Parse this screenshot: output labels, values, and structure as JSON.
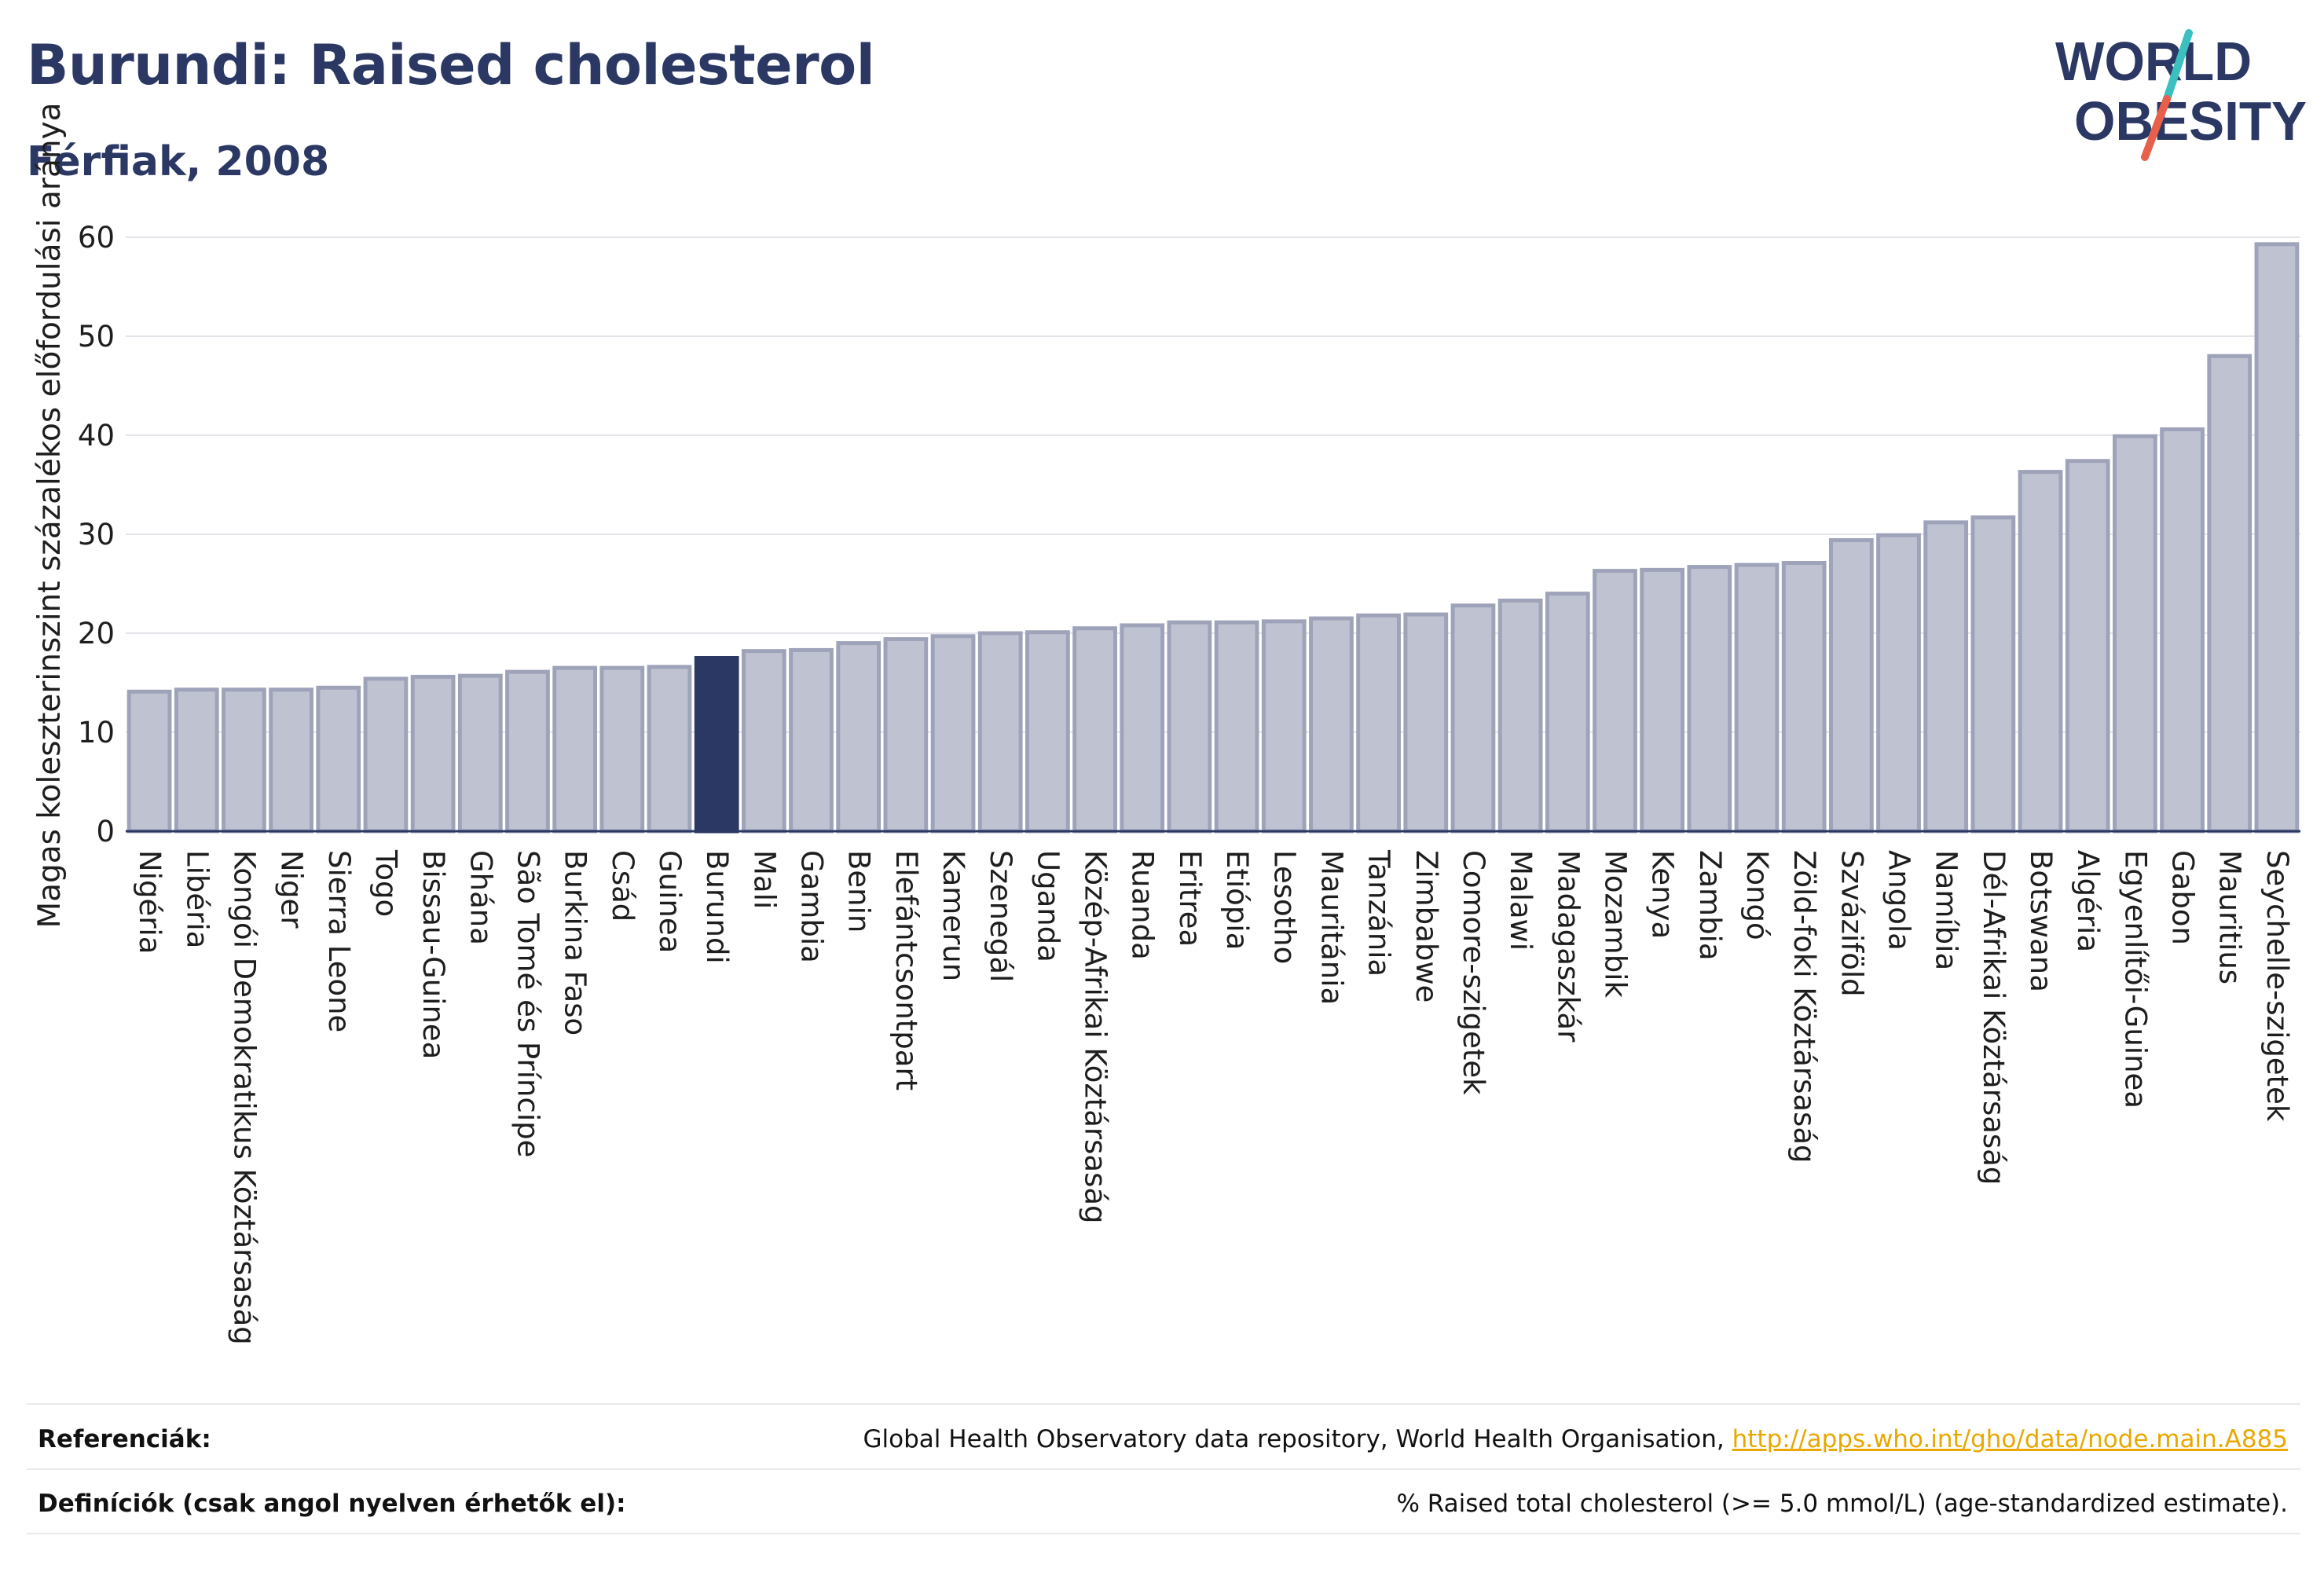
{
  "header": {
    "title": "Burundi: Raised cholesterol",
    "subtitle": "Férfiak, 2008"
  },
  "logo": {
    "line1": "WORLD",
    "line2": "OBESITY",
    "colors": {
      "text": "#2c3864",
      "slash_teal": "#3bbfbf",
      "slash_red": "#e8604c"
    }
  },
  "chart_data": {
    "type": "bar",
    "title": "",
    "xlabel": "",
    "ylabel": "Magas koleszterinszint százalékos előfordulási aránya",
    "ylim": [
      0,
      60
    ],
    "yticks": [
      0,
      10,
      20,
      30,
      40,
      50,
      60
    ],
    "grid": true,
    "highlight": "Burundi",
    "colors": {
      "bar": "#bfc3d1",
      "bar_edge": "#9ea3ba",
      "highlight": "#2c3864",
      "grid": "#e4e4ea",
      "axis": "#2c3864"
    },
    "categories": [
      "Nigéria",
      "Libéria",
      "Kongói Demokratikus Köztársaság",
      "Niger",
      "Sierra Leone",
      "Togo",
      "Bissau-Guinea",
      "Ghána",
      "São Tomé és Príncipe",
      "Burkina Faso",
      "Csád",
      "Guinea",
      "Burundi",
      "Mali",
      "Gambia",
      "Benin",
      "Elefántcsontpart",
      "Kamerun",
      "Szenegál",
      "Uganda",
      "Közép-Afrikai Köztársaság",
      "Ruanda",
      "Eritrea",
      "Etiópia",
      "Lesotho",
      "Mauritánia",
      "Tanzánia",
      "Zimbabwe",
      "Comore-szigetek",
      "Malawi",
      "Madagaszkár",
      "Mozambik",
      "Kenya",
      "Zambia",
      "Kongó",
      "Zöld-foki Köztársaság",
      "Szváziföld",
      "Angola",
      "Namíbia",
      "Dél-Afrikai Köztársaság",
      "Botswana",
      "Algéria",
      "Egyenlítői-Guinea",
      "Gabon",
      "Mauritius",
      "Seychelle-szigetek"
    ],
    "values": [
      14.1,
      14.3,
      14.3,
      14.3,
      14.5,
      15.4,
      15.6,
      15.7,
      16.1,
      16.5,
      16.5,
      16.6,
      17.5,
      18.2,
      18.3,
      19.0,
      19.4,
      19.7,
      20.0,
      20.1,
      20.5,
      20.8,
      21.1,
      21.1,
      21.2,
      21.5,
      21.8,
      21.9,
      22.8,
      23.3,
      24.0,
      26.3,
      26.4,
      26.7,
      26.9,
      27.1,
      29.4,
      29.9,
      31.2,
      31.7,
      36.3,
      37.4,
      39.9,
      40.6,
      48.0,
      59.3
    ]
  },
  "footer": {
    "references_label": "Referenciák:",
    "references_text": "Global Health Observatory data repository, World Health Organisation, ",
    "references_link": "http://apps.who.int/gho/data/node.main.A885",
    "definitions_label": "Definíciók (csak angol nyelven érhetők el):",
    "definitions_text": "% Raised total cholesterol (>= 5.0 mmol/L) (age-standardized estimate)."
  }
}
